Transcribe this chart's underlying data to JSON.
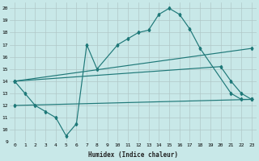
{
  "xlabel": "Humidex (Indice chaleur)",
  "xlim": [
    -0.5,
    23.5
  ],
  "ylim": [
    9,
    20.5
  ],
  "xticks": [
    0,
    1,
    2,
    3,
    4,
    5,
    6,
    7,
    8,
    9,
    10,
    11,
    12,
    13,
    14,
    15,
    16,
    17,
    18,
    19,
    20,
    21,
    22,
    23
  ],
  "yticks": [
    9,
    10,
    11,
    12,
    13,
    14,
    15,
    16,
    17,
    18,
    19,
    20
  ],
  "background_color": "#c8e8e8",
  "grid_color": "#b0c8c8",
  "line_color": "#1e7878",
  "line1_x": [
    0,
    1,
    2,
    3,
    4,
    5,
    6,
    7,
    8,
    10,
    11,
    12,
    13,
    14,
    15,
    16,
    17,
    18,
    21,
    22,
    23
  ],
  "line1_y": [
    14,
    13,
    12,
    11.5,
    11,
    9.5,
    10.5,
    17,
    15,
    17,
    17.5,
    18,
    18.2,
    19.5,
    20,
    19.5,
    18.3,
    16.7,
    13,
    12.5,
    12.5
  ],
  "line2_x": [
    0,
    23
  ],
  "line2_y": [
    14,
    16.7
  ],
  "line3_x": [
    0,
    20,
    21,
    22,
    23
  ],
  "line3_y": [
    14,
    15.2,
    14,
    13,
    12.5
  ],
  "line4_x": [
    0,
    23
  ],
  "line4_y": [
    12,
    12.5
  ]
}
